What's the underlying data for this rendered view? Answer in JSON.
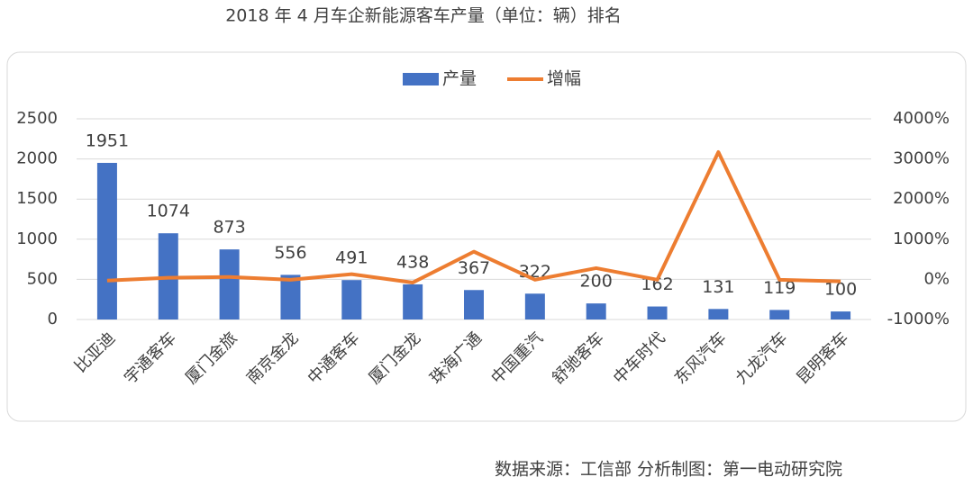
{
  "chart_data": {
    "type": "bar_line",
    "title": "2018 年 4 月车企新能源客车产量（单位：辆）排名",
    "source": "数据来源：工信部  分析制图：第一电动研究院",
    "categories": [
      "比亚迪",
      "宇通客车",
      "厦门金旅",
      "南京金龙",
      "中通客车",
      "厦门金龙",
      "珠海广通",
      "中国重汽",
      "舒驰客车",
      "中车时代",
      "东风汽车",
      "九龙汽车",
      "昆明客车"
    ],
    "series": [
      {
        "name": "产量",
        "color": "#4472c4",
        "type": "bar",
        "values": [
          1951,
          1074,
          873,
          556,
          491,
          438,
          367,
          322,
          200,
          162,
          131,
          119,
          100
        ]
      },
      {
        "name": "增幅",
        "color": "#ed7d31",
        "type": "line",
        "axis": "y2",
        "values": [
          -30,
          40,
          60,
          -10,
          130,
          -80,
          690,
          -10,
          280,
          -10,
          3170,
          -10,
          -50
        ]
      }
    ],
    "ylim": [
      0,
      2500
    ],
    "yticks": [
      0,
      500,
      1000,
      1500,
      2000,
      2500
    ],
    "y2lim": [
      -1000,
      4000
    ],
    "y2ticks": [
      {
        "value": -1000,
        "label": "-1000%"
      },
      {
        "value": 0,
        "label": "0%"
      },
      {
        "value": 1000,
        "label": "1000%"
      },
      {
        "value": 2000,
        "label": "2000%"
      },
      {
        "value": 3000,
        "label": "3000%"
      },
      {
        "value": 4000,
        "label": "4000%"
      }
    ],
    "grid": true,
    "legend": "top"
  }
}
